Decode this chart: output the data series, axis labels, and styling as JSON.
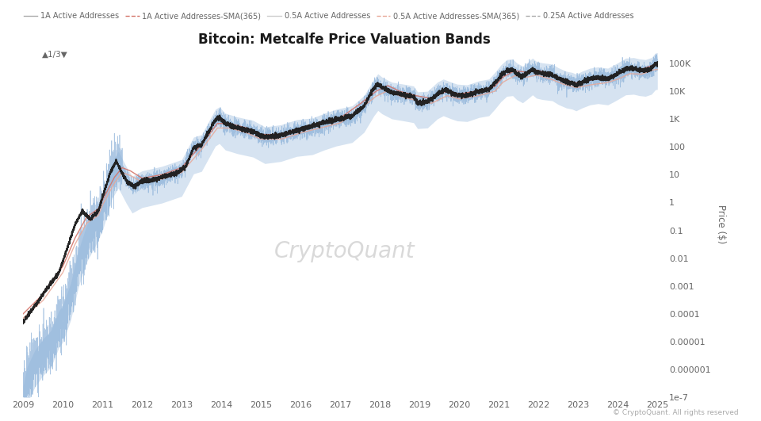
{
  "title": "Bitcoin: Metcalfe Price Valuation Bands",
  "ylabel": "Price ($)",
  "background_color": "#ffffff",
  "plot_bg_color": "#ffffff",
  "watermark": "CryptoQuant",
  "credit": "© CryptoQuant. All rights reserved",
  "x_tick_years": [
    2009,
    2010,
    2011,
    2012,
    2013,
    2014,
    2015,
    2016,
    2017,
    2018,
    2019,
    2020,
    2021,
    2022,
    2023,
    2024,
    2025
  ],
  "y_ticks_log": [
    1e-07,
    1e-06,
    1e-05,
    0.0001,
    0.001,
    0.01,
    0.1,
    1,
    10,
    100,
    1000,
    10000,
    100000
  ],
  "y_tick_labels": [
    "1e-7",
    "0.000001",
    "0.00001",
    "0.0001",
    "0.001",
    "0.01",
    "0.1",
    "1",
    "10",
    "100",
    "1K",
    "10K",
    "100K"
  ],
  "ylim_min": 1e-07,
  "ylim_max": 300000,
  "btc_color": "#1a1a1a",
  "blue_color": "#8ab0d8",
  "sma1_color": "#d4756a",
  "sma05_color": "#e8a898",
  "subtitle": "▲1/3▼",
  "legend_labels": [
    "1A Active Addresses",
    "1A Active Addresses-SMA(365)",
    "0.5A Active Addresses",
    "0.5A Active Addresses-SMA(365)",
    "0.25A Active Addresses"
  ],
  "legend_colors": [
    "#aaaaaa",
    "#d4756a",
    "#cccccc",
    "#e8a898",
    "#aaaaaa"
  ],
  "legend_styles": [
    "solid",
    "dashed",
    "solid",
    "dashed",
    "dashed"
  ]
}
